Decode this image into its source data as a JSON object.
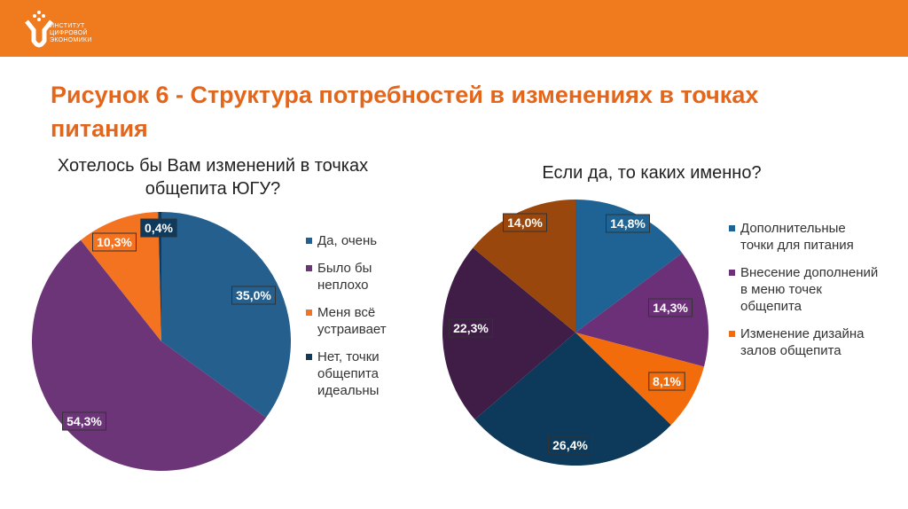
{
  "header": {
    "logo_lines": [
      "ИНСТИТУТ",
      "ЦИФРОВОЙ",
      "ЭКОНОМИКИ"
    ]
  },
  "title": "Рисунок 6 - Структура потребностей в изменениях в точках питания",
  "chart_data": [
    {
      "type": "pie",
      "title": "Хотелось бы Вам изменений в точках общепита ЮГУ?",
      "categories": [
        "Да, очень",
        "Было бы неплохо",
        "Меня всё устраивает",
        "Нет, точки общепита идеальны"
      ],
      "values": [
        35.0,
        54.3,
        10.3,
        0.4
      ],
      "labels": [
        "35,0%",
        "54,3%",
        "10,3%",
        "0,4%"
      ],
      "colors": [
        "#245f8d",
        "#6b3578",
        "#f37321",
        "#0f3a5c"
      ],
      "legend": "right"
    },
    {
      "type": "pie",
      "title": "Если да, то каких именно?",
      "categories": [
        "Дополнительные точки для питания",
        "Внесение дополнений в меню точек общепита",
        "Изменение дизайна залов общепита",
        "",
        "",
        ""
      ],
      "values": [
        14.8,
        14.3,
        8.1,
        26.4,
        22.3,
        14.0
      ],
      "labels": [
        "14,8%",
        "14,3%",
        "8,1%",
        "26,4%",
        "22,3%",
        "14,0%"
      ],
      "colors": [
        "#1e6394",
        "#6c3079",
        "#f26c0b",
        "#0d3a5a",
        "#3f1d47",
        "#9a470d"
      ],
      "legend": "right"
    }
  ]
}
